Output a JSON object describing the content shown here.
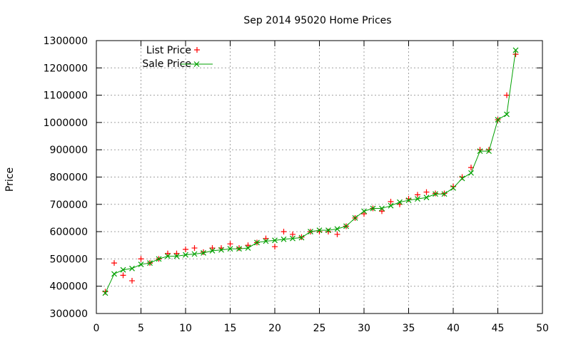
{
  "chart_data": {
    "type": "line",
    "title": "Sep 2014 95020 Home Prices",
    "xlabel": "",
    "ylabel": "Price",
    "xlim": [
      0,
      50
    ],
    "ylim": [
      300000,
      1300000
    ],
    "xticks": [
      0,
      5,
      10,
      15,
      20,
      25,
      30,
      35,
      40,
      45,
      50
    ],
    "yticks": [
      300000,
      400000,
      500000,
      600000,
      700000,
      800000,
      900000,
      1000000,
      1100000,
      1200000,
      1300000
    ],
    "grid": true,
    "legend_position": "top-left",
    "x": [
      1,
      2,
      3,
      4,
      5,
      6,
      7,
      8,
      9,
      10,
      11,
      12,
      13,
      14,
      15,
      16,
      17,
      18,
      19,
      20,
      21,
      22,
      23,
      24,
      25,
      26,
      27,
      28,
      29,
      30,
      31,
      32,
      33,
      34,
      35,
      36,
      37,
      38,
      39,
      40,
      41,
      42,
      43,
      44,
      45,
      46,
      47
    ],
    "series": [
      {
        "name": "List Price",
        "style": "points",
        "marker": "plus",
        "color": "#ff0000",
        "values": [
          380000,
          485000,
          440000,
          420000,
          500000,
          485000,
          500000,
          520000,
          520000,
          535000,
          540000,
          525000,
          540000,
          540000,
          555000,
          540000,
          550000,
          560000,
          575000,
          545000,
          600000,
          590000,
          580000,
          600000,
          600000,
          600000,
          590000,
          620000,
          650000,
          665000,
          685000,
          675000,
          710000,
          700000,
          720000,
          735000,
          745000,
          740000,
          740000,
          765000,
          800000,
          835000,
          900000,
          900000,
          1010000,
          1100000,
          1250000
        ]
      },
      {
        "name": "Sale Price",
        "style": "linespoints",
        "marker": "cross",
        "color": "#00a000",
        "values": [
          375000,
          445000,
          460000,
          465000,
          480000,
          485000,
          500000,
          510000,
          510000,
          515000,
          518000,
          522000,
          530000,
          533000,
          537000,
          537000,
          540000,
          560000,
          565000,
          568000,
          572000,
          575000,
          578000,
          600000,
          605000,
          605000,
          610000,
          620000,
          650000,
          675000,
          685000,
          685000,
          695000,
          708000,
          715000,
          720000,
          725000,
          738000,
          738000,
          760000,
          795000,
          815000,
          895000,
          895000,
          1010000,
          1030000,
          1265000
        ]
      }
    ]
  }
}
